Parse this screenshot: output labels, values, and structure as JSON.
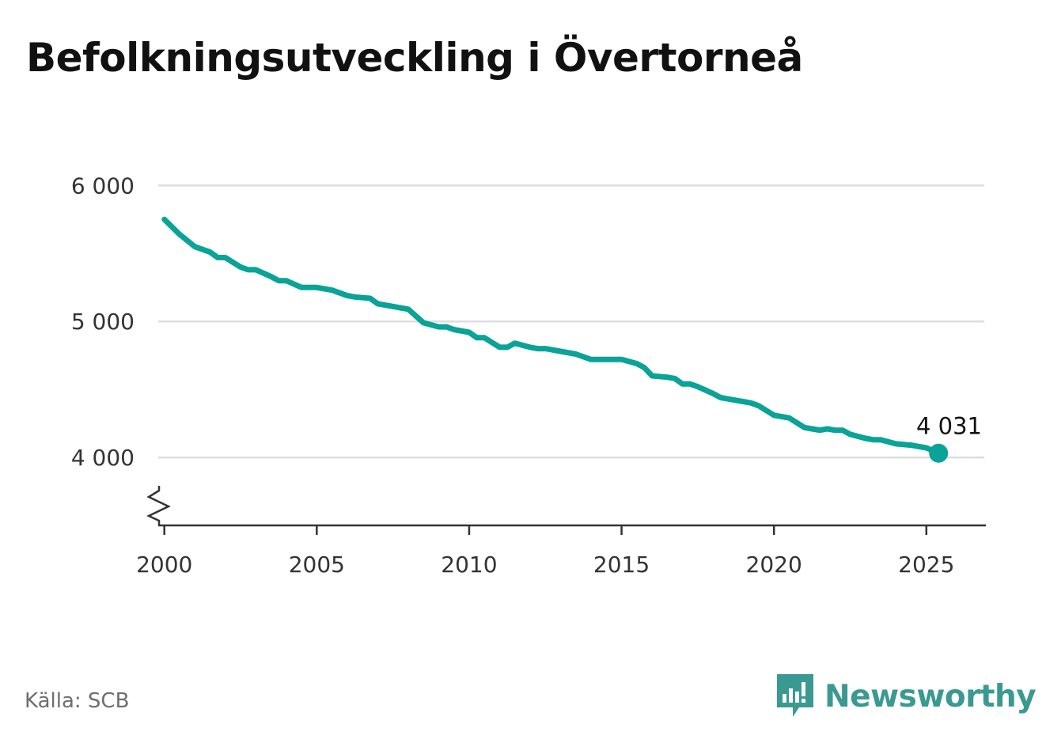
{
  "title": "Befolkningsutveckling i Övertorneå",
  "source": "Källa: SCB",
  "brand": {
    "name": "Newsworthy",
    "icon": "newsworthy-logo-icon",
    "color": "#3a9a92"
  },
  "colors": {
    "line": "#0aa397",
    "grid": "#dedede",
    "axis": "#333333"
  },
  "chart_data": {
    "type": "line",
    "title": "Befolkningsutveckling i Övertorneå",
    "xlabel": "",
    "ylabel": "",
    "xlim": [
      1999.8,
      2026.9
    ],
    "ylim": [
      3500,
      6200
    ],
    "y_axis_broken": true,
    "grid": true,
    "x_ticks": [
      2000,
      2005,
      2010,
      2015,
      2020,
      2025
    ],
    "x_tick_labels": [
      "2000",
      "2005",
      "2010",
      "2015",
      "2020",
      "2025"
    ],
    "y_ticks": [
      4000,
      5000,
      6000
    ],
    "y_tick_labels": [
      "4 000",
      "5 000",
      "6 000"
    ],
    "end_label": "4 031",
    "series": [
      {
        "x": [
          2000,
          2000.5,
          2001,
          2001.5,
          2001.75,
          2002,
          2002.5,
          2002.75,
          2003,
          2003.5,
          2003.75,
          2004,
          2004.5,
          2004.75,
          2005,
          2005.25,
          2005.5,
          2006,
          2006.25,
          2006.75,
          2007,
          2007.5,
          2008,
          2008.5,
          2009,
          2009.25,
          2009.5,
          2010,
          2010.25,
          2010.5,
          2011,
          2011.25,
          2011.5,
          2012,
          2012.25,
          2012.5,
          2013,
          2013.5,
          2014,
          2014.5,
          2014.75,
          2015,
          2015.5,
          2015.75,
          2016,
          2016.5,
          2016.75,
          2017,
          2017.25,
          2017.5,
          2018,
          2018.25,
          2018.5,
          2019,
          2019.25,
          2019.5,
          2020,
          2020.5,
          2021,
          2021.25,
          2021.5,
          2021.75,
          2022,
          2022.25,
          2022.5,
          2023,
          2023.25,
          2023.5,
          2024,
          2024.5,
          2024.75,
          2025,
          2025.4
        ],
        "values": [
          5750,
          5640,
          5550,
          5510,
          5470,
          5470,
          5400,
          5380,
          5380,
          5330,
          5300,
          5300,
          5250,
          5250,
          5250,
          5240,
          5230,
          5190,
          5180,
          5170,
          5130,
          5110,
          5090,
          4990,
          4960,
          4960,
          4940,
          4920,
          4880,
          4880,
          4810,
          4810,
          4840,
          4810,
          4800,
          4800,
          4780,
          4760,
          4720,
          4720,
          4720,
          4720,
          4690,
          4660,
          4600,
          4590,
          4580,
          4540,
          4540,
          4520,
          4470,
          4440,
          4430,
          4410,
          4400,
          4380,
          4310,
          4290,
          4220,
          4210,
          4200,
          4210,
          4200,
          4200,
          4170,
          4140,
          4130,
          4130,
          4100,
          4090,
          4080,
          4070,
          4031
        ]
      }
    ]
  }
}
